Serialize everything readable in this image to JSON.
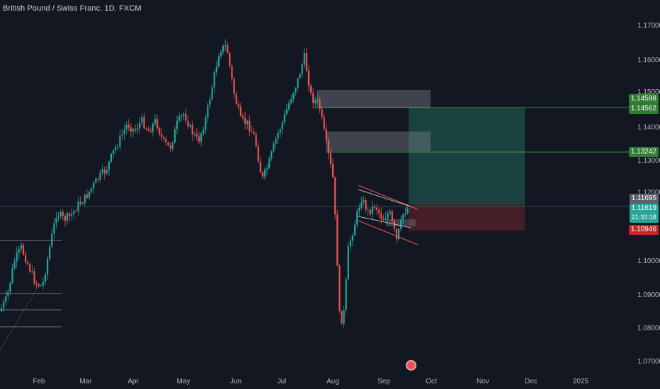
{
  "header": {
    "symbol": "British Pound / Swiss Franc",
    "interval": "1D",
    "exchange": "FXCM"
  },
  "price_axis": {
    "labels": [
      "1.17000",
      "1.16000",
      "1.15000",
      "1.14000",
      "1.13000",
      "1.12000",
      "1.10000",
      "1.09000",
      "1.08000",
      "1.07000"
    ]
  },
  "price_tags": {
    "upper1": "1.14598",
    "upper2": "1.14562",
    "mid": "1.13242",
    "entry": "1.11695",
    "last_price": "1.11619",
    "countdown": "21:33:18",
    "stop": "1.10946"
  },
  "time_axis": {
    "months": [
      "Feb",
      "Mar",
      "Apr",
      "May",
      "Jun",
      "Jul",
      "Aug",
      "Sep",
      "Oct",
      "Nov",
      "Dec",
      "2025"
    ]
  },
  "colors": {
    "background": "#131722",
    "up": "#26a69a",
    "down": "#ef5350",
    "tag_green": "#2e7d32",
    "tag_red": "#c62828",
    "tag_gray": "#5d606b",
    "tag_last": "#26a69a"
  },
  "icons": {
    "logo": "tradingview-logo-icon"
  }
}
